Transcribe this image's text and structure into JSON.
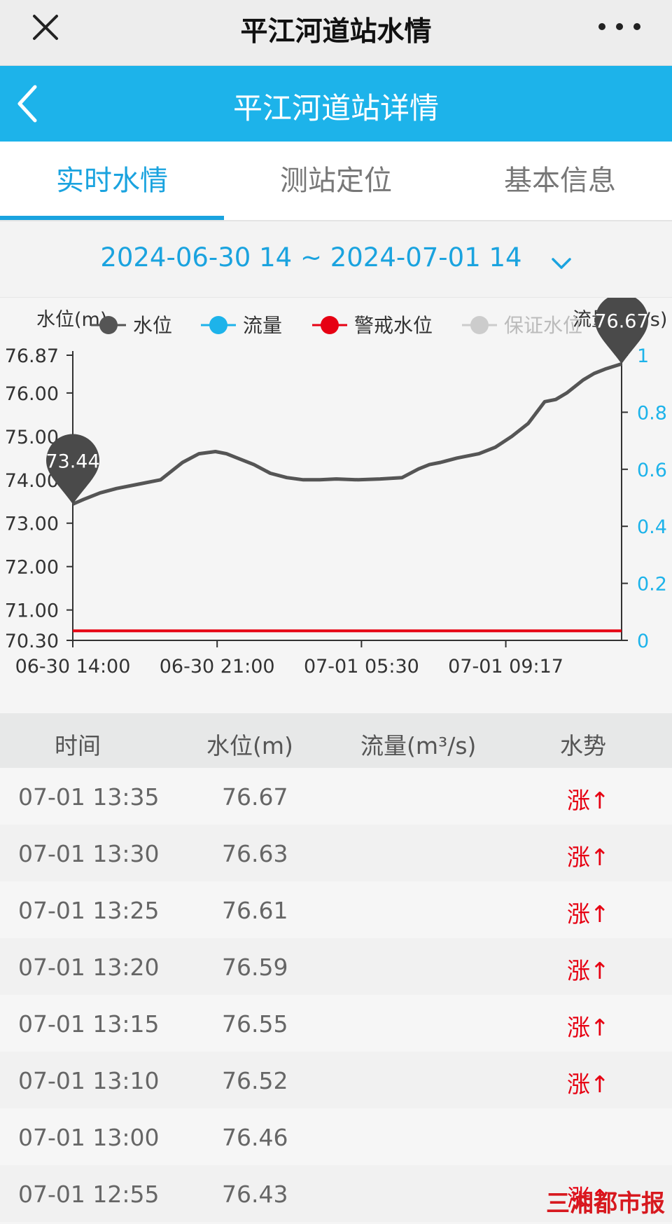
{
  "topbar": {
    "title": "平江河道站水情"
  },
  "header": {
    "title": "平江河道站详情"
  },
  "tabs": [
    {
      "label": "实时水情",
      "active": true
    },
    {
      "label": "测站定位",
      "active": false
    },
    {
      "label": "基本信息",
      "active": false
    }
  ],
  "date_range": "2024-06-30 14 ~ 2024-07-01 14",
  "colors": {
    "accent": "#1aa3df",
    "header": "#1db3ea",
    "water_level": "#555555",
    "flow": "#1db3ea",
    "warning": "#e60012",
    "guarantee": "#cccccc",
    "rising": "#e60012"
  },
  "chart_data": {
    "type": "line",
    "left_axis_label": "水位(m)",
    "right_axis_label": "流量(m³/s)",
    "legend": [
      {
        "name": "水位",
        "color": "#555555"
      },
      {
        "name": "流量",
        "color": "#1db3ea"
      },
      {
        "name": "警戒水位",
        "color": "#e60012"
      },
      {
        "name": "保证水位",
        "color": "#cccccc"
      }
    ],
    "y_left_ticks": [
      "76.87",
      "76.00",
      "75.00",
      "74.00",
      "73.00",
      "72.00",
      "71.00",
      "70.30"
    ],
    "y_left_ticks_num": [
      76.87,
      76.0,
      75.0,
      74.0,
      73.0,
      72.0,
      71.0,
      70.3
    ],
    "ylim_left": [
      70.3,
      76.87
    ],
    "y_right_ticks": [
      "1",
      "0.8",
      "0.6",
      "0.4",
      "0.2",
      "0"
    ],
    "ylim_right": [
      0,
      1
    ],
    "x_ticks": [
      "06-30 14:00",
      "06-30 21:00",
      "07-01 05:30",
      "07-01 09:17"
    ],
    "x_tick_pos": [
      0,
      0.263,
      0.526,
      0.789
    ],
    "series": [
      {
        "name": "水位",
        "x": [
          0,
          0.02,
          0.05,
          0.08,
          0.12,
          0.16,
          0.2,
          0.23,
          0.26,
          0.28,
          0.3,
          0.33,
          0.36,
          0.39,
          0.42,
          0.45,
          0.48,
          0.52,
          0.56,
          0.6,
          0.63,
          0.65,
          0.67,
          0.7,
          0.74,
          0.77,
          0.8,
          0.83,
          0.86,
          0.88,
          0.9,
          0.93,
          0.95,
          0.97,
          1.0
        ],
        "values": [
          73.44,
          73.55,
          73.7,
          73.8,
          73.9,
          74.0,
          74.4,
          74.6,
          74.65,
          74.6,
          74.5,
          74.35,
          74.15,
          74.05,
          74.0,
          74.0,
          74.02,
          74.0,
          74.02,
          74.05,
          74.25,
          74.35,
          74.4,
          74.5,
          74.6,
          74.75,
          75.0,
          75.3,
          75.8,
          75.85,
          76.0,
          76.3,
          76.45,
          76.55,
          76.67
        ]
      },
      {
        "name": "警戒水位",
        "value": 70.52
      }
    ],
    "markers": [
      {
        "label": "73.44",
        "x": 0,
        "value": 73.44
      },
      {
        "label": "76.67",
        "x": 1.0,
        "value": 76.67
      }
    ]
  },
  "table": {
    "headers": [
      "时间",
      "水位(m)",
      "流量(m³/s)",
      "水势"
    ],
    "rows": [
      {
        "time": "07-01 13:35",
        "level": "76.67",
        "flow": "",
        "trend": "涨↑"
      },
      {
        "time": "07-01 13:30",
        "level": "76.63",
        "flow": "",
        "trend": "涨↑"
      },
      {
        "time": "07-01 13:25",
        "level": "76.61",
        "flow": "",
        "trend": "涨↑"
      },
      {
        "time": "07-01 13:20",
        "level": "76.59",
        "flow": "",
        "trend": "涨↑"
      },
      {
        "time": "07-01 13:15",
        "level": "76.55",
        "flow": "",
        "trend": "涨↑"
      },
      {
        "time": "07-01 13:10",
        "level": "76.52",
        "flow": "",
        "trend": "涨↑"
      },
      {
        "time": "07-01 13:00",
        "level": "76.46",
        "flow": "",
        "trend": ""
      },
      {
        "time": "07-01 12:55",
        "level": "76.43",
        "flow": "",
        "trend": "涨↑"
      }
    ]
  },
  "watermark": "三湘都市报"
}
